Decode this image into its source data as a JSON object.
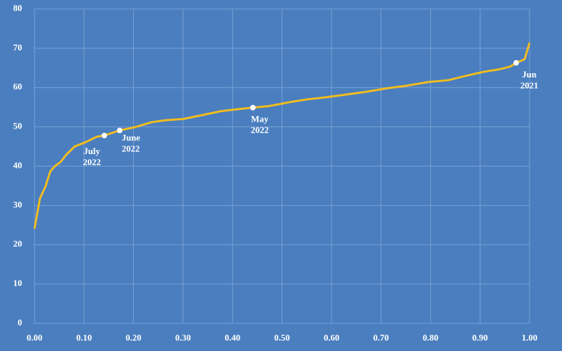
{
  "chart_data": {
    "type": "line",
    "x": [
      0.0,
      0.011,
      0.022,
      0.032,
      0.042,
      0.053,
      0.064,
      0.081,
      0.103,
      0.126,
      0.141,
      0.172,
      0.202,
      0.237,
      0.265,
      0.3,
      0.335,
      0.377,
      0.411,
      0.441,
      0.474,
      0.516,
      0.551,
      0.586,
      0.628,
      0.669,
      0.711,
      0.753,
      0.795,
      0.837,
      0.865,
      0.907,
      0.941,
      0.962,
      0.973,
      0.99,
      1.0
    ],
    "series": [
      {
        "color": "#f2bd1d",
        "values": [
          24.1,
          31.8,
          34.8,
          38.7,
          40.1,
          41.1,
          42.9,
          45.0,
          46.1,
          47.5,
          47.8,
          49.1,
          49.9,
          51.2,
          51.7,
          52.0,
          52.9,
          54.0,
          54.5,
          54.9,
          55.3,
          56.3,
          57.0,
          57.5,
          58.2,
          58.9,
          59.8,
          60.5,
          61.4,
          61.9,
          62.8,
          64.0,
          64.7,
          65.4,
          66.3,
          67.2,
          71.4
        ]
      }
    ],
    "annotations": [
      {
        "x": 0.141,
        "y": 47.8,
        "lines": [
          "July",
          "2022"
        ]
      },
      {
        "x": 0.172,
        "y": 49.1,
        "lines": [
          "June",
          "2022"
        ]
      },
      {
        "x": 0.441,
        "y": 54.9,
        "lines": [
          "May",
          "2022"
        ]
      },
      {
        "x": 0.973,
        "y": 66.3,
        "lines": [
          "Jun",
          "2021"
        ]
      }
    ],
    "xlim": [
      0,
      1
    ],
    "xticks": [
      {
        "value": 0,
        "label": "0.00"
      },
      {
        "value": 0.1,
        "label": "0.10"
      },
      {
        "value": 0.2,
        "label": "0.20"
      },
      {
        "value": 0.3,
        "label": "0.30"
      },
      {
        "value": 0.4,
        "label": "0.40"
      },
      {
        "value": 0.5,
        "label": "0.50"
      },
      {
        "value": 0.6,
        "label": "0.60"
      },
      {
        "value": 0.7,
        "label": "0.70"
      },
      {
        "value": 0.8,
        "label": "0.80"
      },
      {
        "value": 0.9,
        "label": "0.90"
      },
      {
        "value": 1,
        "label": "1.00"
      }
    ],
    "ylim": [
      0,
      80
    ],
    "yticks": [
      0,
      10,
      20,
      30,
      40,
      50,
      60,
      70,
      80
    ],
    "grid": true
  }
}
